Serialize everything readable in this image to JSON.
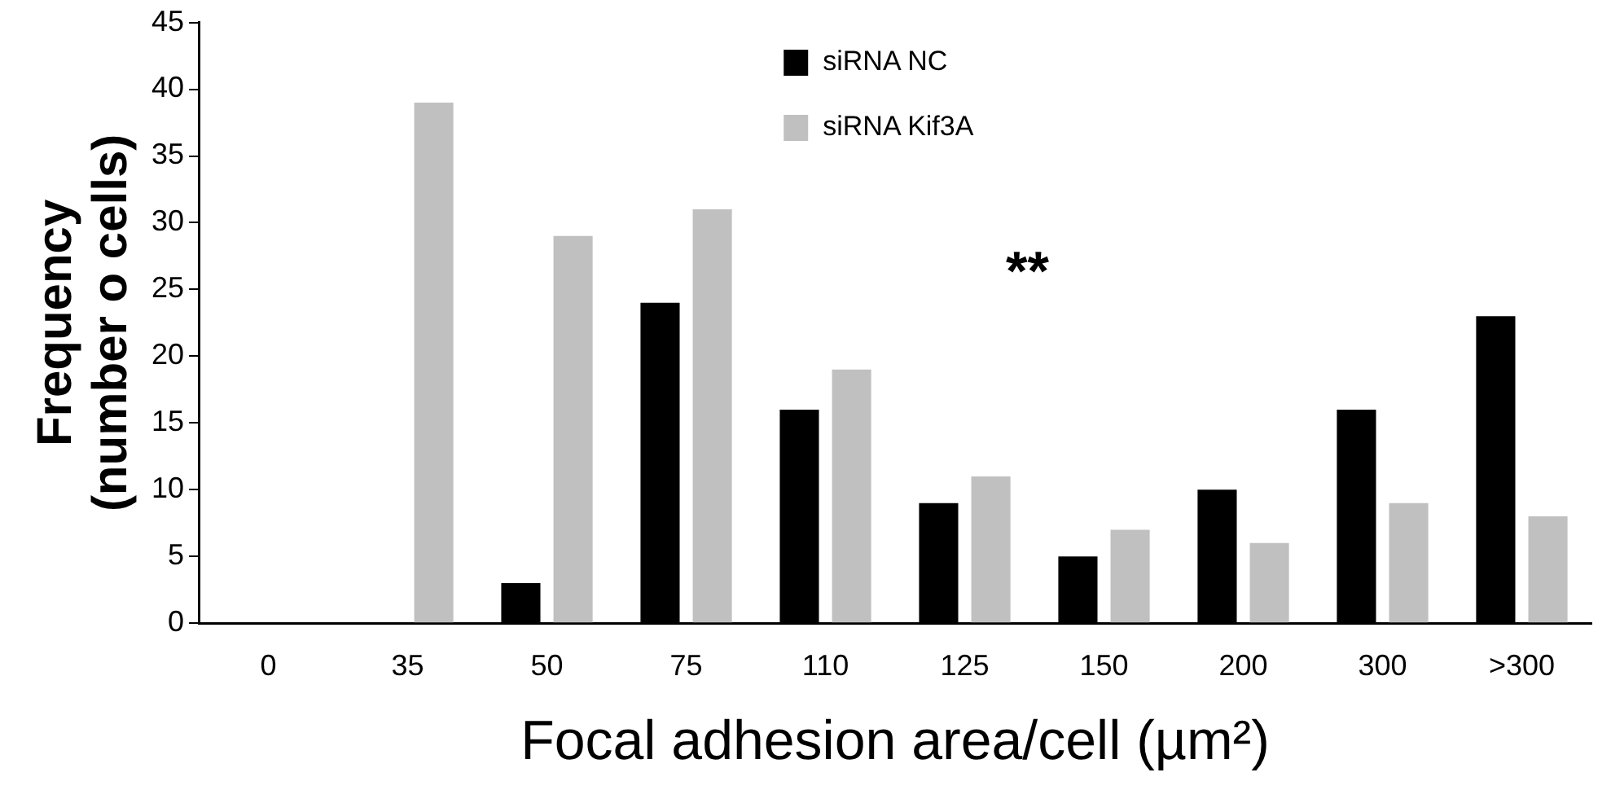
{
  "chart_data": {
    "type": "bar",
    "xlabel": "Focal adhesion area/cell (µm²)",
    "ylabel": "Frequency\n(number o cells)",
    "categories": [
      "0",
      "35",
      "50",
      "75",
      "110",
      "125",
      "150",
      "200",
      "300",
      ">300"
    ],
    "series": [
      {
        "name": "siRNA NC",
        "color": "#000000",
        "values": [
          0,
          0,
          3,
          24,
          16,
          9,
          5,
          10,
          16,
          23
        ]
      },
      {
        "name": "siRNA Kif3A",
        "color": "#c0c0c0",
        "values": [
          0,
          39,
          29,
          31,
          19,
          11,
          7,
          6,
          9,
          8
        ]
      }
    ],
    "ylim": [
      0,
      45
    ],
    "yticks": [
      0,
      5,
      10,
      15,
      20,
      25,
      30,
      35,
      40,
      45
    ],
    "grid": false,
    "legend": "top",
    "annotations": [
      "**"
    ]
  }
}
